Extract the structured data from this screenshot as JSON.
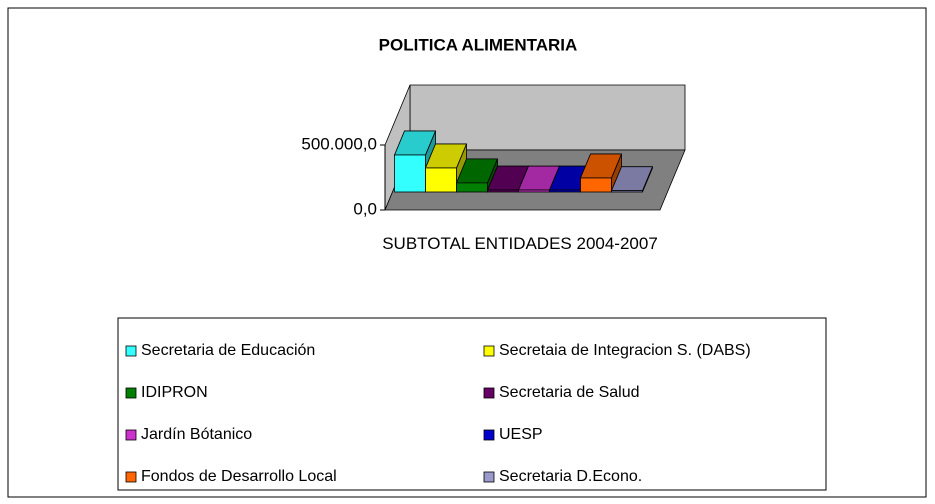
{
  "chart_data": {
    "type": "bar",
    "title": "POLITICA ALIMENTARIA",
    "categories": [
      "SUBTOTAL ENTIDADES 2004-2007"
    ],
    "ylim": [
      0,
      500000
    ],
    "yticks": [
      {
        "value": 0,
        "label": "0,0"
      },
      {
        "value": 500000,
        "label": "500.000,0"
      }
    ],
    "series": [
      {
        "name": "Secretaria de Educación",
        "color": "#33ffff",
        "values": [
          285000
        ]
      },
      {
        "name": "Secretaia de Integracion S. (DABS)",
        "color": "#ffff00",
        "values": [
          185000
        ]
      },
      {
        "name": "IDIPRON",
        "color": "#008000",
        "values": [
          70000
        ]
      },
      {
        "name": "Secretaria de Salud",
        "color": "#660066",
        "values": [
          15000
        ]
      },
      {
        "name": "Jardín Bótanico",
        "color": "#cc33cc",
        "values": [
          15000
        ]
      },
      {
        "name": "UESP",
        "color": "#0000cc",
        "values": [
          15000
        ]
      },
      {
        "name": "Fondos de Desarrollo Local",
        "color": "#ff6600",
        "values": [
          108000
        ]
      },
      {
        "name": "Secretaria D.Econo.",
        "color": "#9999cc",
        "values": [
          10000
        ]
      }
    ]
  }
}
